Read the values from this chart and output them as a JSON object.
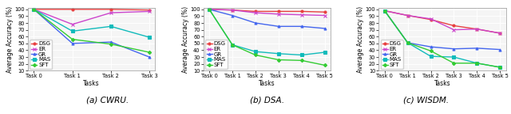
{
  "subplots": [
    {
      "title": "(a) CWRU.",
      "xlabel": "Tasks",
      "ylabel": "Average Accuracy (%)",
      "tasks": [
        "Task 0",
        "Task 1",
        "Task 2",
        "Task 3"
      ],
      "ylim": [
        10,
        102
      ],
      "yticks": [
        10,
        20,
        30,
        40,
        50,
        60,
        70,
        80,
        90,
        100
      ],
      "series": [
        {
          "label": "DSG",
          "color": "#e84040",
          "marker": "o",
          "data": [
            100,
            100,
            100,
            99
          ]
        },
        {
          "label": "ER",
          "color": "#cc44cc",
          "marker": "x",
          "data": [
            100,
            78,
            95,
            97
          ]
        },
        {
          "label": "GR",
          "color": "#4466ee",
          "marker": "^",
          "data": [
            100,
            50,
            52,
            30
          ]
        },
        {
          "label": "MAS",
          "color": "#11bbbb",
          "marker": "s",
          "data": [
            100,
            68,
            75,
            59
          ]
        },
        {
          "label": "SFT",
          "color": "#33cc33",
          "marker": "D",
          "data": [
            100,
            56,
            49,
            37
          ]
        }
      ]
    },
    {
      "title": "(b) DSA.",
      "xlabel": "Tasks",
      "ylabel": "Average Accuracy (%)",
      "tasks": [
        "Task 0",
        "Task 1",
        "Task 2",
        "Task 3",
        "Task 4",
        "Task 5"
      ],
      "ylim": [
        10,
        102
      ],
      "yticks": [
        10,
        20,
        30,
        40,
        50,
        60,
        70,
        80,
        90,
        100
      ],
      "series": [
        {
          "label": "DSG",
          "color": "#e84040",
          "marker": "o",
          "data": [
            100,
            99,
            97,
            97,
            97,
            96
          ]
        },
        {
          "label": "ER",
          "color": "#cc44cc",
          "marker": "x",
          "data": [
            100,
            99,
            95,
            93,
            92,
            91
          ]
        },
        {
          "label": "GR",
          "color": "#4466ee",
          "marker": "^",
          "data": [
            100,
            91,
            80,
            75,
            75,
            72
          ]
        },
        {
          "label": "MAS",
          "color": "#11bbbb",
          "marker": "s",
          "data": [
            100,
            48,
            38,
            35,
            33,
            37
          ]
        },
        {
          "label": "SFT",
          "color": "#33cc33",
          "marker": "D",
          "data": [
            100,
            48,
            33,
            26,
            25,
            18
          ]
        }
      ]
    },
    {
      "title": "(c) WISDM.",
      "xlabel": "Tasks",
      "ylabel": "Average Accuracy (%)",
      "tasks": [
        "Task 0",
        "Task 1",
        "Task 2",
        "Task 3",
        "Task 4",
        "Task 5"
      ],
      "ylim": [
        10,
        102
      ],
      "yticks": [
        10,
        20,
        30,
        40,
        50,
        60,
        70,
        80,
        90,
        100
      ],
      "series": [
        {
          "label": "DSG",
          "color": "#e84040",
          "marker": "o",
          "data": [
            98,
            91,
            85,
            76,
            71,
            65
          ]
        },
        {
          "label": "ER",
          "color": "#cc44cc",
          "marker": "x",
          "data": [
            98,
            91,
            86,
            70,
            71,
            65
          ]
        },
        {
          "label": "GR",
          "color": "#4466ee",
          "marker": "^",
          "data": [
            98,
            51,
            45,
            42,
            43,
            41
          ]
        },
        {
          "label": "MAS",
          "color": "#11bbbb",
          "marker": "s",
          "data": [
            98,
            51,
            31,
            30,
            21,
            15
          ]
        },
        {
          "label": "SFT",
          "color": "#33cc33",
          "marker": "D",
          "data": [
            98,
            51,
            39,
            21,
            21,
            15
          ]
        }
      ]
    }
  ],
  "legend_fontsize": 5.0,
  "axis_label_fontsize": 5.5,
  "title_fontsize": 7.5,
  "tick_fontsize": 4.8,
  "linewidth": 1.0,
  "markersize": 2.2,
  "bg_color": "#f5f5f5"
}
